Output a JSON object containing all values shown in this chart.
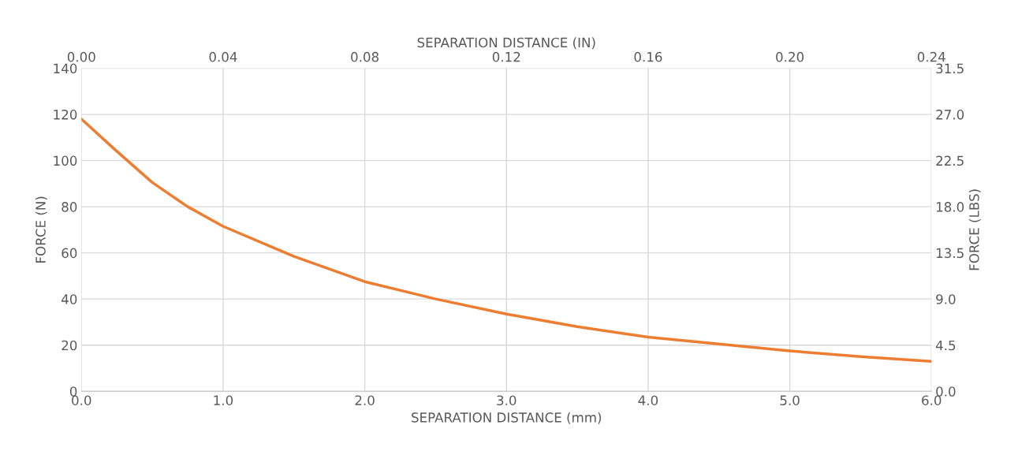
{
  "chart_data": {
    "type": "line",
    "xlabel": "SEPARATION DISTANCE (mm)",
    "ylabel": "FORCE (N)",
    "y2label": "FORCE (LBS)",
    "x2label": "SEPARATION DISTANCE (IN)",
    "x": [
      0,
      0.25,
      0.5,
      0.75,
      1.0,
      1.5,
      2.0,
      2.5,
      3.0,
      3.5,
      4.0,
      4.5,
      5.0,
      5.5,
      6.0
    ],
    "series": [
      {
        "color": "#ed7d31",
        "values": [
          118,
          104,
          90.5,
          80,
          71.5,
          58.5,
          47.5,
          40,
          33.5,
          28,
          23.5,
          20.5,
          17.5,
          15,
          13
        ]
      }
    ],
    "xlim": [
      0,
      6
    ],
    "xticks": [
      {
        "value": 0,
        "label": "0.0"
      },
      {
        "value": 1,
        "label": "1.0"
      },
      {
        "value": 2,
        "label": "2.0"
      },
      {
        "value": 3,
        "label": "3.0"
      },
      {
        "value": 4,
        "label": "4.0"
      },
      {
        "value": 5,
        "label": "5.0"
      },
      {
        "value": 6,
        "label": "6.0"
      }
    ],
    "ylim": [
      0,
      140
    ],
    "yticks": [
      0,
      20,
      40,
      60,
      80,
      100,
      120,
      140
    ],
    "x2lim": [
      0,
      0.24
    ],
    "x2ticks": [
      {
        "value": 0,
        "label": "0.00"
      },
      {
        "value": 0.04,
        "label": "0.04"
      },
      {
        "value": 0.08,
        "label": "0.08"
      },
      {
        "value": 0.12,
        "label": "0.12"
      },
      {
        "value": 0.16,
        "label": "0.16"
      },
      {
        "value": 0.2,
        "label": "0.20"
      },
      {
        "value": 0.24,
        "label": "0.24"
      }
    ],
    "y2lim": [
      0,
      31.5
    ],
    "y2ticks": [
      {
        "value": 0,
        "label": "0.0"
      },
      4.5,
      {
        "value": 9,
        "label": "9.0"
      },
      13.5,
      {
        "value": 18,
        "label": "18.0"
      },
      22.5,
      {
        "value": 27,
        "label": "27.0"
      },
      31.5
    ],
    "grid": true,
    "marker": "none",
    "line_style": "solid"
  }
}
